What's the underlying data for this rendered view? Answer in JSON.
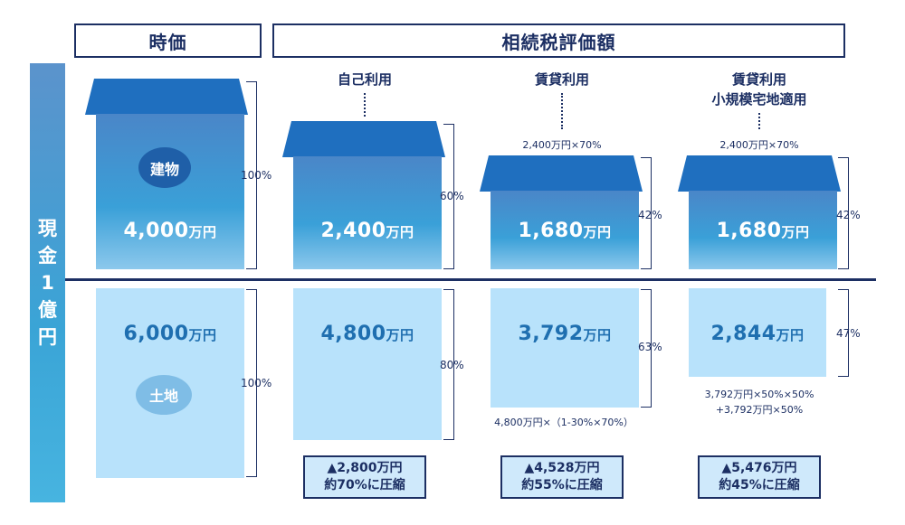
{
  "headers": {
    "jika": "時価",
    "sozoku": "相続税評価額"
  },
  "sidebar": {
    "chars": [
      "現",
      "金",
      "1",
      "億",
      "円"
    ]
  },
  "columns": {
    "self_use": "自己利用",
    "rental": "賃貸利用",
    "small_lot_line1": "賃貸利用",
    "small_lot_line2": "小規模宅地適用"
  },
  "labels": {
    "building": "建物",
    "land": "土地"
  },
  "market": {
    "building_num": "4,000",
    "building_unit": "万円",
    "building_pct": "100%",
    "land_num": "6,000",
    "land_unit": "万円",
    "land_pct": "100%"
  },
  "self_use": {
    "building_num": "2,400",
    "building_unit": "万円",
    "building_pct": "60%",
    "land_num": "4,800",
    "land_unit": "万円",
    "land_pct": "80%",
    "result_line1": "▲2,800万円",
    "result_line2": "約70%に圧縮"
  },
  "rental": {
    "formula_top": "2,400万円×70%",
    "building_num": "1,680",
    "building_unit": "万円",
    "building_pct": "42%",
    "land_num": "3,792",
    "land_unit": "万円",
    "land_pct": "63%",
    "formula_bottom": "4,800万円×（1-30%×70%）",
    "result_line1": "▲4,528万円",
    "result_line2": "約55%に圧縮"
  },
  "small_lot": {
    "formula_top": "2,400万円×70%",
    "building_num": "1,680",
    "building_unit": "万円",
    "building_pct": "42%",
    "land_num": "2,844",
    "land_unit": "万円",
    "land_pct": "47%",
    "formula_bottom1": "3,792万円×50%×50%",
    "formula_bottom2": "+3,792万円×50%",
    "result_line1": "▲5,476万円",
    "result_line2": "約45%に圧縮"
  },
  "colors": {
    "navy": "#1c2f63",
    "roof": "#1f6fbf",
    "building": "#3aa0d8",
    "land": "#b8e2fb",
    "circle_building": "#1f5fa8",
    "circle_land": "#7fbde6"
  }
}
